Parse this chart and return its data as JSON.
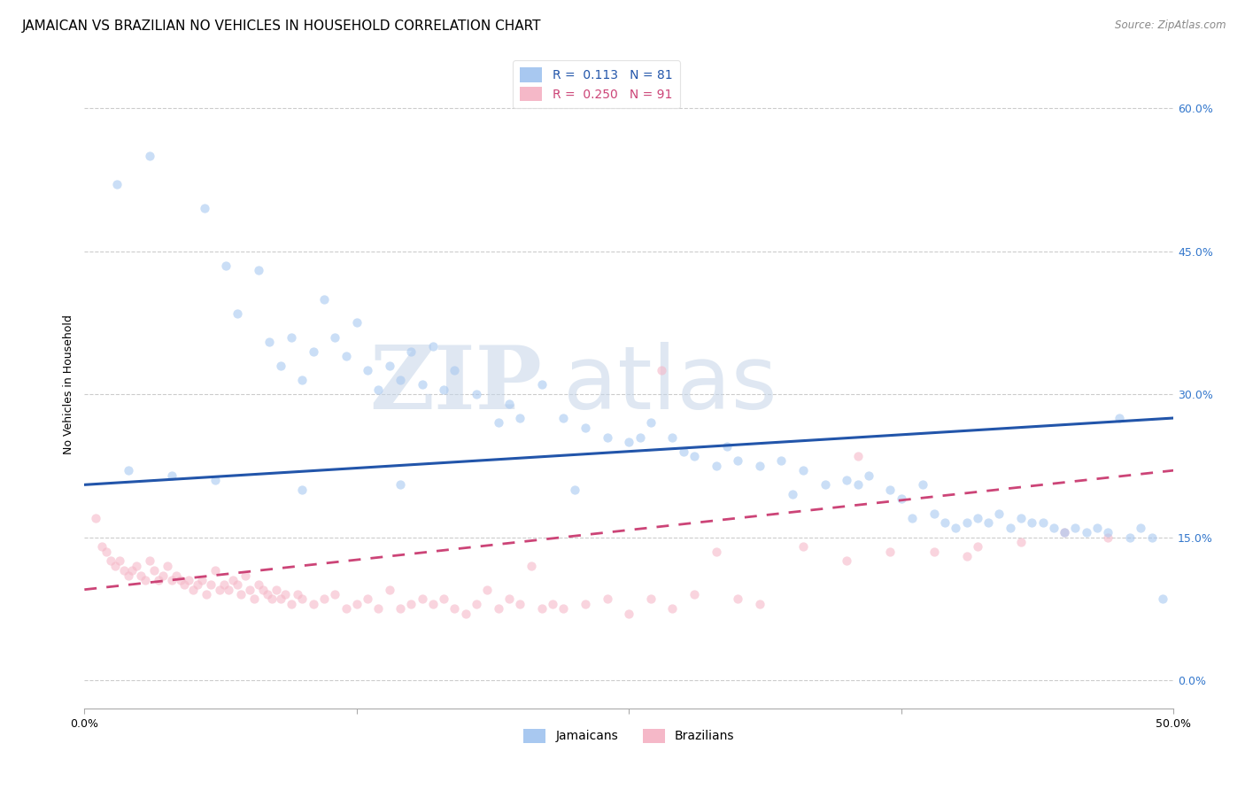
{
  "title": "JAMAICAN VS BRAZILIAN NO VEHICLES IN HOUSEHOLD CORRELATION CHART",
  "source": "Source: ZipAtlas.com",
  "ylabel": "No Vehicles in Household",
  "ytick_values": [
    0.0,
    15.0,
    30.0,
    45.0,
    60.0
  ],
  "xlim": [
    0.0,
    50.0
  ],
  "ylim": [
    -3.0,
    65.0
  ],
  "jamaican_color": "#a8c8f0",
  "brazilian_color": "#f5b8c8",
  "trend_jamaican_color": "#2255aa",
  "trend_brazilian_color": "#cc4477",
  "legend_label_jamaican": "Jamaicans",
  "legend_label_brazilian": "Brazilians",
  "r_jamaican": 0.113,
  "n_jamaican": 81,
  "r_brazilian": 0.25,
  "n_brazilian": 91,
  "trend_j_x0": 0.0,
  "trend_j_y0": 20.5,
  "trend_j_x1": 50.0,
  "trend_j_y1": 27.5,
  "trend_b_x0": 0.0,
  "trend_b_y0": 9.5,
  "trend_b_x1": 50.0,
  "trend_b_y1": 22.0,
  "jamaican_x": [
    1.5,
    3.0,
    5.5,
    6.5,
    8.0,
    7.0,
    8.5,
    9.0,
    9.5,
    10.0,
    10.5,
    11.0,
    11.5,
    12.0,
    12.5,
    13.0,
    13.5,
    14.0,
    14.5,
    15.0,
    15.5,
    16.0,
    16.5,
    17.0,
    18.0,
    19.0,
    19.5,
    20.0,
    21.0,
    22.0,
    23.0,
    24.0,
    25.0,
    25.5,
    26.0,
    27.0,
    27.5,
    28.0,
    29.0,
    29.5,
    30.0,
    31.0,
    32.0,
    33.0,
    34.0,
    35.0,
    35.5,
    36.0,
    37.0,
    38.0,
    38.5,
    39.0,
    39.5,
    40.0,
    40.5,
    41.0,
    41.5,
    42.0,
    42.5,
    43.0,
    43.5,
    44.0,
    44.5,
    45.0,
    45.5,
    46.0,
    46.5,
    47.0,
    48.0,
    48.5,
    49.0,
    2.0,
    4.0,
    6.0,
    10.0,
    14.5,
    22.5,
    32.5,
    37.5,
    47.5,
    49.5
  ],
  "jamaican_y": [
    52.0,
    55.0,
    49.5,
    43.5,
    43.0,
    38.5,
    35.5,
    33.0,
    36.0,
    31.5,
    34.5,
    40.0,
    36.0,
    34.0,
    37.5,
    32.5,
    30.5,
    33.0,
    31.5,
    34.5,
    31.0,
    35.0,
    30.5,
    32.5,
    30.0,
    27.0,
    29.0,
    27.5,
    31.0,
    27.5,
    26.5,
    25.5,
    25.0,
    25.5,
    27.0,
    25.5,
    24.0,
    23.5,
    22.5,
    24.5,
    23.0,
    22.5,
    23.0,
    22.0,
    20.5,
    21.0,
    20.5,
    21.5,
    20.0,
    17.0,
    20.5,
    17.5,
    16.5,
    16.0,
    16.5,
    17.0,
    16.5,
    17.5,
    16.0,
    17.0,
    16.5,
    16.5,
    16.0,
    15.5,
    16.0,
    15.5,
    16.0,
    15.5,
    15.0,
    16.0,
    15.0,
    22.0,
    21.5,
    21.0,
    20.0,
    20.5,
    20.0,
    19.5,
    19.0,
    27.5,
    8.5
  ],
  "brazilian_x": [
    0.5,
    0.8,
    1.0,
    1.2,
    1.4,
    1.6,
    1.8,
    2.0,
    2.2,
    2.4,
    2.6,
    2.8,
    3.0,
    3.2,
    3.4,
    3.6,
    3.8,
    4.0,
    4.2,
    4.4,
    4.6,
    4.8,
    5.0,
    5.2,
    5.4,
    5.6,
    5.8,
    6.0,
    6.2,
    6.4,
    6.6,
    6.8,
    7.0,
    7.2,
    7.4,
    7.6,
    7.8,
    8.0,
    8.2,
    8.4,
    8.6,
    8.8,
    9.0,
    9.2,
    9.5,
    9.8,
    10.0,
    10.5,
    11.0,
    11.5,
    12.0,
    12.5,
    13.0,
    13.5,
    14.0,
    14.5,
    15.0,
    15.5,
    16.0,
    16.5,
    17.0,
    17.5,
    18.0,
    18.5,
    19.0,
    19.5,
    20.0,
    20.5,
    21.0,
    21.5,
    22.0,
    23.0,
    24.0,
    25.0,
    26.0,
    27.0,
    28.0,
    29.0,
    30.0,
    31.0,
    33.0,
    35.0,
    37.0,
    39.0,
    41.0,
    43.0,
    45.0,
    47.0,
    26.5,
    35.5,
    40.5
  ],
  "brazilian_y": [
    17.0,
    14.0,
    13.5,
    12.5,
    12.0,
    12.5,
    11.5,
    11.0,
    11.5,
    12.0,
    11.0,
    10.5,
    12.5,
    11.5,
    10.5,
    11.0,
    12.0,
    10.5,
    11.0,
    10.5,
    10.0,
    10.5,
    9.5,
    10.0,
    10.5,
    9.0,
    10.0,
    11.5,
    9.5,
    10.0,
    9.5,
    10.5,
    10.0,
    9.0,
    11.0,
    9.5,
    8.5,
    10.0,
    9.5,
    9.0,
    8.5,
    9.5,
    8.5,
    9.0,
    8.0,
    9.0,
    8.5,
    8.0,
    8.5,
    9.0,
    7.5,
    8.0,
    8.5,
    7.5,
    9.5,
    7.5,
    8.0,
    8.5,
    8.0,
    8.5,
    7.5,
    7.0,
    8.0,
    9.5,
    7.5,
    8.5,
    8.0,
    12.0,
    7.5,
    8.0,
    7.5,
    8.0,
    8.5,
    7.0,
    8.5,
    7.5,
    9.0,
    13.5,
    8.5,
    8.0,
    14.0,
    12.5,
    13.5,
    13.5,
    14.0,
    14.5,
    15.5,
    15.0,
    32.5,
    23.5,
    13.0
  ],
  "background_color": "#ffffff",
  "grid_color": "#cccccc",
  "title_fontsize": 11,
  "axis_label_fontsize": 9,
  "tick_label_color": "#3377cc",
  "tick_label_fontsize": 9,
  "scatter_size": 55,
  "scatter_alpha": 0.6,
  "watermark_zip": "ZIP",
  "watermark_atlas": "atlas",
  "watermark_color_zip": "#c5d5e8",
  "watermark_color_atlas": "#c5d5e8",
  "watermark_fontsize": 72
}
